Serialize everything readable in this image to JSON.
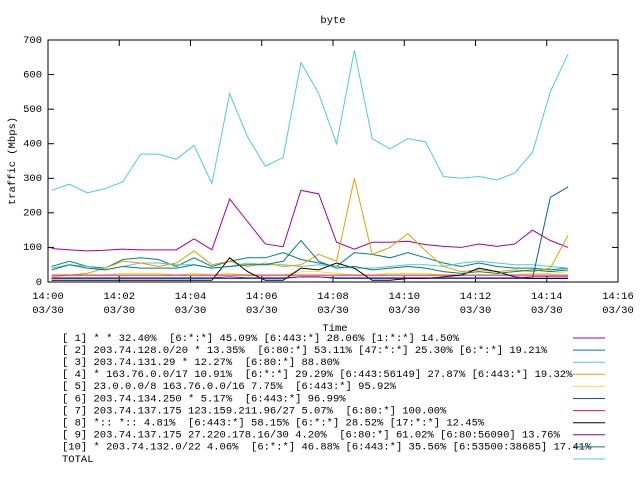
{
  "chart_data": {
    "type": "line",
    "title": "byte",
    "x_label": "Time",
    "y_label": "traffic (Mbps)",
    "xlim": [
      0,
      16
    ],
    "xticks": [
      {
        "value": 0,
        "label": "14:00\n03/30"
      },
      {
        "value": 2,
        "label": "14:02\n03/30"
      },
      {
        "value": 4,
        "label": "14:04\n03/30"
      },
      {
        "value": 6,
        "label": "14:06\n03/30"
      },
      {
        "value": 8,
        "label": "14:08\n03/30"
      },
      {
        "value": 10,
        "label": "14:10\n03/30"
      },
      {
        "value": 12,
        "label": "14:12\n03/30"
      },
      {
        "value": 14,
        "label": "14:14\n03/30"
      },
      {
        "value": 16,
        "label": "14:16\n03/30"
      }
    ],
    "ylim": [
      0,
      700
    ],
    "yticks": [
      0,
      100,
      200,
      300,
      400,
      500,
      600,
      700
    ],
    "grid": false,
    "x": [
      0.1,
      0.6,
      1.1,
      1.6,
      2.1,
      2.6,
      3.1,
      3.6,
      4.1,
      4.6,
      5.1,
      5.6,
      6.1,
      6.6,
      7.1,
      7.6,
      8.1,
      8.6,
      9.1,
      9.6,
      10.1,
      10.6,
      11.1,
      11.6,
      12.1,
      12.6,
      13.1,
      13.6,
      14.1,
      14.6
    ],
    "series": [
      {
        "name": "[ 1] * * 32.40%  [6:*:*] 45.09% [6:443:*] 28.06% [1:*:*] 14.50%",
        "color": "#a000a0",
        "values": [
          97,
          93,
          90,
          92,
          95,
          93,
          93,
          93,
          125,
          93,
          240,
          175,
          110,
          102,
          265,
          255,
          115,
          95,
          115,
          115,
          118,
          108,
          103,
          100,
          110,
          103,
          110,
          150,
          120,
          100
        ]
      },
      {
        "name": "[ 2] 203.74.128.0/20 * 13.35%  [6:80:*] 53.11% [47:*:*] 25.30% [6:*:*] 19.21%",
        "color": "#008080",
        "values": [
          45,
          60,
          45,
          40,
          65,
          70,
          65,
          45,
          70,
          45,
          60,
          70,
          70,
          85,
          65,
          55,
          45,
          85,
          80,
          70,
          85,
          70,
          55,
          45,
          55,
          45,
          40,
          40,
          35,
          40
        ]
      },
      {
        "name": "[ 3] 203.74.131.29 * 12.27%  [6:80:*] 88.80%",
        "color": "#60c0e0",
        "values": [
          40,
          50,
          45,
          35,
          45,
          55,
          55,
          50,
          50,
          40,
          45,
          55,
          50,
          50,
          45,
          50,
          45,
          40,
          40,
          45,
          50,
          50,
          45,
          55,
          60,
          55,
          50,
          50,
          45,
          40
        ]
      },
      {
        "name": "[ 4] * 163.76.0.0/17 10.91%  [6:*:*] 29.29% [6:443:56149] 27.87% [6:443:*] 19.32%",
        "color": "#e0a000",
        "values": [
          15,
          20,
          25,
          40,
          60,
          55,
          45,
          55,
          90,
          50,
          60,
          45,
          55,
          45,
          50,
          80,
          60,
          300,
          80,
          100,
          140,
          90,
          45,
          30,
          35,
          30,
          35,
          30,
          40,
          135
        ]
      },
      {
        "name": "[ 5] 23.0.0.0/8 163.76.0.0/16 7.75%  [6:443:*] 95.92%",
        "color": "#f0e040",
        "values": [
          20,
          20,
          20,
          20,
          25,
          25,
          25,
          20,
          25,
          20,
          25,
          20,
          20,
          20,
          30,
          30,
          25,
          20,
          20,
          25,
          25,
          25,
          20,
          20,
          20,
          20,
          20,
          25,
          25,
          30
        ]
      },
      {
        "name": "[ 6] 203.74.134.250 * 5.17%  [6:443:*] 96.99%",
        "color": "#0060a0",
        "values": [
          10,
          10,
          10,
          10,
          10,
          10,
          10,
          10,
          10,
          10,
          10,
          10,
          10,
          10,
          15,
          15,
          10,
          10,
          10,
          10,
          10,
          10,
          10,
          10,
          10,
          10,
          10,
          10,
          245,
          275
        ]
      },
      {
        "name": "[ 7] 203.74.137.175 123.159.211.96/27 5.07%  [6:80:*] 100.00%",
        "color": "#e02020",
        "values": [
          20,
          20,
          20,
          20,
          20,
          20,
          20,
          20,
          20,
          20,
          20,
          20,
          20,
          20,
          20,
          20,
          20,
          20,
          20,
          20,
          20,
          20,
          20,
          20,
          20,
          20,
          20,
          20,
          20,
          20
        ]
      },
      {
        "name": "[ 8] *:: *:: 4.81%  [6:443:*] 58.15% [6:*:*] 28.52% [17:*:*] 12.45%",
        "color": "#000000",
        "values": [
          5,
          5,
          5,
          5,
          5,
          5,
          5,
          5,
          5,
          5,
          70,
          30,
          5,
          5,
          40,
          35,
          55,
          40,
          5,
          5,
          10,
          10,
          15,
          20,
          40,
          30,
          15,
          10,
          10,
          10
        ]
      },
      {
        "name": "[ 9] 203.74.137.175 27.220.178.16/30 4.20%  [6:80:*] 61.02% [6:80:56090] 13.76%",
        "color": "#8000c0",
        "values": [
          12,
          12,
          12,
          12,
          12,
          12,
          12,
          12,
          12,
          12,
          15,
          12,
          12,
          12,
          15,
          15,
          12,
          12,
          12,
          12,
          12,
          12,
          12,
          12,
          12,
          12,
          12,
          15,
          15,
          15
        ]
      },
      {
        "name": "[10] * 203.74.132.0/22 4.06%  [6:*:*] 46.88% [6:443:*] 35.56% [6:53500:38685] 17.41%",
        "color": "#00806a",
        "values": [
          35,
          50,
          40,
          35,
          45,
          40,
          40,
          40,
          50,
          40,
          45,
          50,
          50,
          60,
          120,
          60,
          40,
          45,
          35,
          40,
          45,
          40,
          30,
          25,
          30,
          25,
          30,
          35,
          30,
          35
        ]
      },
      {
        "name": "TOTAL",
        "color": "#50c8e8",
        "values": [
          265,
          283,
          258,
          270,
          290,
          370,
          370,
          355,
          395,
          285,
          545,
          420,
          335,
          360,
          635,
          545,
          400,
          670,
          415,
          385,
          415,
          405,
          305,
          300,
          305,
          295,
          315,
          375,
          550,
          660
        ]
      }
    ]
  }
}
